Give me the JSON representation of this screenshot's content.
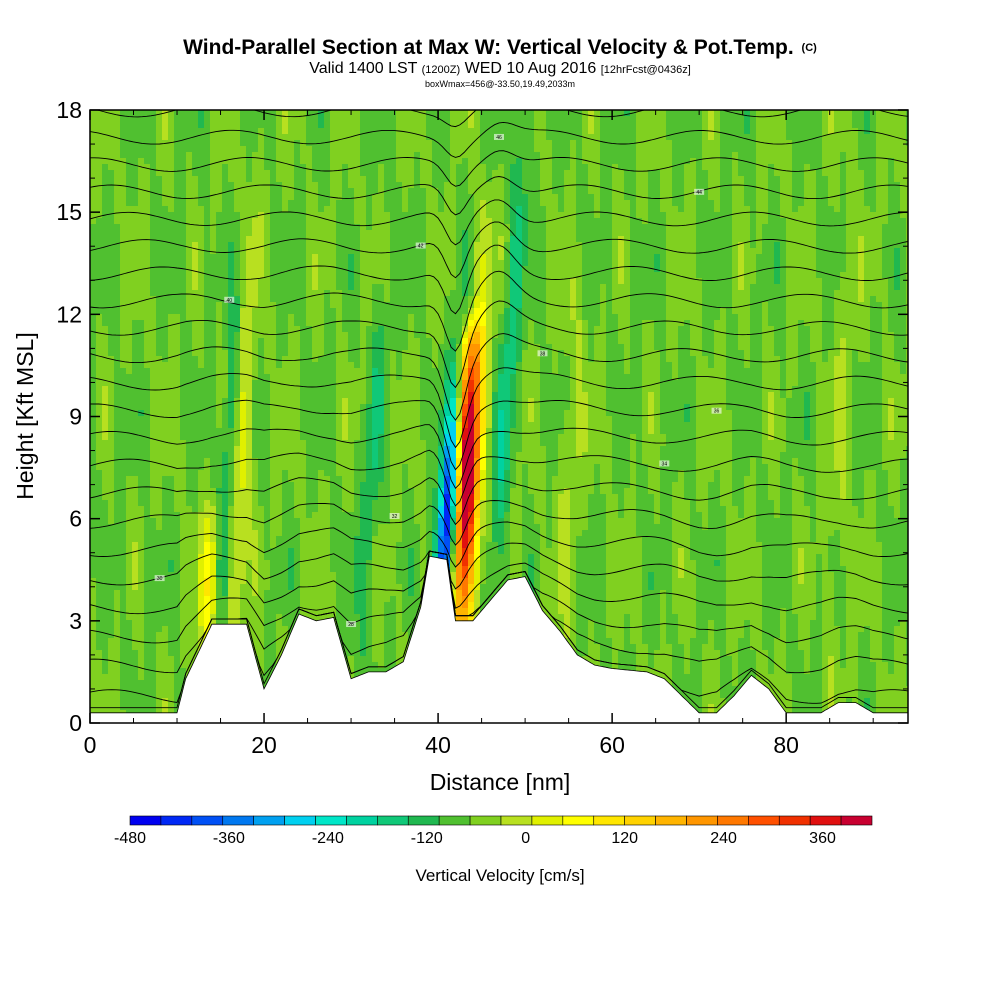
{
  "header": {
    "title": "Wind-Parallel Section at Max W: Vertical Velocity & Pot.Temp.",
    "title_mark": "(C)",
    "valid_prefix": "Valid 1400 LST",
    "valid_zulu": "(1200Z)",
    "valid_date": "WED 10 Aug 2016",
    "forecast": "[12hrFcst@0436z]",
    "box_info": "boxWmax=456@-33.50,19.49,2033m"
  },
  "chart_data": {
    "type": "heatmap",
    "title": "Wind-Parallel Section at Max W: Vertical Velocity & Pot.Temp.",
    "xlabel": "Distance [nm]",
    "ylabel": "Height [Kft MSL]",
    "xlim": [
      0,
      94
    ],
    "ylim": [
      0,
      18
    ],
    "x_ticks": [
      0,
      20,
      40,
      60,
      80
    ],
    "y_ticks": [
      0,
      3,
      6,
      9,
      12,
      15,
      18
    ],
    "colorbar": {
      "title": "Vertical Velocity [cm/s]",
      "min": -480,
      "max": 420,
      "step": 40,
      "tick_values": [
        -480,
        -360,
        -240,
        -120,
        0,
        120,
        240,
        360
      ],
      "tick_labels": [
        "-480",
        "-360",
        "-240",
        "-120",
        "0",
        "120",
        "240",
        "360"
      ],
      "colors": [
        "#0000f0",
        "#0028f5",
        "#0050f5",
        "#0078f0",
        "#00a0f0",
        "#00d0f0",
        "#00e6c8",
        "#00d2a0",
        "#10c878",
        "#20b850",
        "#50c030",
        "#80d020",
        "#b8e020",
        "#e0f000",
        "#ffff00",
        "#ffe600",
        "#ffd200",
        "#ffb400",
        "#ff9600",
        "#ff7800",
        "#ff5000",
        "#f03000",
        "#e01010",
        "#c80030"
      ]
    },
    "vertical_velocity": {
      "background_cm_s": -40,
      "updrafts": [
        {
          "x_nm": 14,
          "top_kft": 6,
          "peak_cm_s": 150
        },
        {
          "x_nm": 17,
          "top_kft": 17.5,
          "peak_cm_s": 110
        },
        {
          "x_nm": 43,
          "top_kft": 11,
          "peak_cm_s": 456
        },
        {
          "x_nm": 44,
          "top_kft": 15,
          "peak_cm_s": 160
        },
        {
          "x_nm": 55,
          "top_kft": 13,
          "peak_cm_s": 50
        },
        {
          "x_nm": 86,
          "top_kft": 16,
          "peak_cm_s": 40
        }
      ],
      "downdrafts": [
        {
          "x_nm": 41,
          "top_kft": 9,
          "peak_cm_s": -430
        },
        {
          "x_nm": 15.5,
          "top_kft": 13,
          "peak_cm_s": -110
        },
        {
          "x_nm": 47,
          "top_kft": 17,
          "peak_cm_s": -110
        },
        {
          "x_nm": 32,
          "top_kft": 12,
          "peak_cm_s": -80
        }
      ]
    },
    "potential_temperature": {
      "units": "C",
      "contour_levels_c": [
        27,
        28,
        29,
        30,
        31,
        32,
        33,
        34,
        35,
        36,
        37,
        38,
        39,
        40,
        41,
        42,
        43,
        44,
        45,
        46,
        47,
        48,
        49
      ],
      "contour_labels": [
        "26",
        "28",
        "30",
        "32",
        "34",
        "36",
        "38",
        "40",
        "42",
        "44",
        "46"
      ]
    },
    "terrain_profile": {
      "x_nm": [
        0,
        10,
        11,
        14,
        18,
        20,
        22,
        24,
        26,
        28,
        30,
        32,
        34,
        36,
        38,
        39,
        41,
        42,
        44,
        46,
        48,
        50,
        52,
        54,
        56,
        58,
        60,
        64,
        66,
        68,
        70,
        72,
        74,
        76,
        78,
        80,
        82,
        84,
        86,
        88,
        90,
        94
      ],
      "height_kft": [
        0.3,
        0.3,
        1.3,
        2.9,
        2.9,
        1.0,
        2.0,
        3.2,
        3.0,
        3.1,
        1.3,
        1.5,
        1.5,
        1.8,
        3.4,
        4.9,
        4.8,
        3.0,
        3.0,
        3.6,
        4.2,
        4.3,
        3.3,
        2.7,
        2.0,
        1.7,
        1.6,
        1.5,
        1.3,
        0.8,
        0.3,
        0.3,
        0.8,
        1.4,
        1.0,
        0.3,
        0.3,
        0.3,
        0.6,
        0.6,
        0.3,
        0.3
      ]
    }
  }
}
